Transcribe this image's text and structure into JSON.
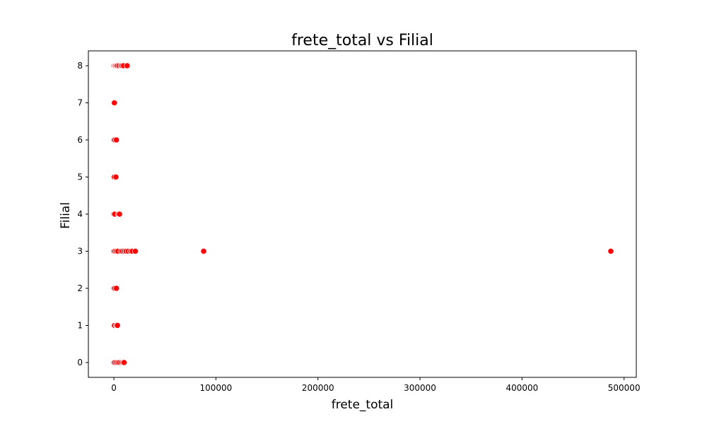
{
  "chart_data": {
    "type": "scatter",
    "title": "frete_total vs Filial",
    "xlabel": "frete_total",
    "ylabel": "Filial",
    "xlim": [
      -25000,
      512000
    ],
    "ylim": [
      -0.4,
      8.4
    ],
    "grid": false,
    "x_ticks": [
      0,
      100000,
      200000,
      300000,
      400000,
      500000
    ],
    "x_tick_labels": [
      "0",
      "100000",
      "200000",
      "300000",
      "400000",
      "500000"
    ],
    "y_ticks": [
      0,
      1,
      2,
      3,
      4,
      5,
      6,
      7,
      8
    ],
    "y_tick_labels": [
      "0",
      "1",
      "2",
      "3",
      "4",
      "5",
      "6",
      "7",
      "8"
    ],
    "marker_color": "#ff0000",
    "marker_edge_color": "#ffffff",
    "series": [
      {
        "points": [
          {
            "x": 0,
            "y": 8
          },
          {
            "x": 800,
            "y": 8
          },
          {
            "x": 1500,
            "y": 8
          },
          {
            "x": 2500,
            "y": 8
          },
          {
            "x": 3500,
            "y": 8
          },
          {
            "x": 5000,
            "y": 8
          },
          {
            "x": 7000,
            "y": 8
          },
          {
            "x": 8000,
            "y": 8
          },
          {
            "x": 9500,
            "y": 8
          },
          {
            "x": 13000,
            "y": 8
          },
          {
            "x": 0,
            "y": 7
          },
          {
            "x": 500,
            "y": 7
          },
          {
            "x": 0,
            "y": 6
          },
          {
            "x": 800,
            "y": 6
          },
          {
            "x": 2500,
            "y": 6
          },
          {
            "x": 0,
            "y": 5
          },
          {
            "x": 400,
            "y": 5
          },
          {
            "x": 2000,
            "y": 5
          },
          {
            "x": 0,
            "y": 4
          },
          {
            "x": 800,
            "y": 4
          },
          {
            "x": 4500,
            "y": 4
          },
          {
            "x": 5500,
            "y": 4
          },
          {
            "x": 0,
            "y": 3
          },
          {
            "x": 1000,
            "y": 3
          },
          {
            "x": 2500,
            "y": 3
          },
          {
            "x": 4000,
            "y": 3
          },
          {
            "x": 7000,
            "y": 3
          },
          {
            "x": 8500,
            "y": 3
          },
          {
            "x": 10500,
            "y": 3
          },
          {
            "x": 12000,
            "y": 3
          },
          {
            "x": 14000,
            "y": 3
          },
          {
            "x": 16500,
            "y": 3
          },
          {
            "x": 18000,
            "y": 3
          },
          {
            "x": 21000,
            "y": 3
          },
          {
            "x": 88000,
            "y": 3
          },
          {
            "x": 487000,
            "y": 3
          },
          {
            "x": 0,
            "y": 2
          },
          {
            "x": 800,
            "y": 2
          },
          {
            "x": 2500,
            "y": 2
          },
          {
            "x": 0,
            "y": 1
          },
          {
            "x": 600,
            "y": 1
          },
          {
            "x": 2500,
            "y": 1
          },
          {
            "x": 3500,
            "y": 1
          },
          {
            "x": 0,
            "y": 0
          },
          {
            "x": 800,
            "y": 0
          },
          {
            "x": 2500,
            "y": 0
          },
          {
            "x": 4000,
            "y": 0
          },
          {
            "x": 5500,
            "y": 0
          },
          {
            "x": 7500,
            "y": 0
          },
          {
            "x": 9000,
            "y": 0
          },
          {
            "x": 10000,
            "y": 0
          }
        ]
      }
    ]
  }
}
